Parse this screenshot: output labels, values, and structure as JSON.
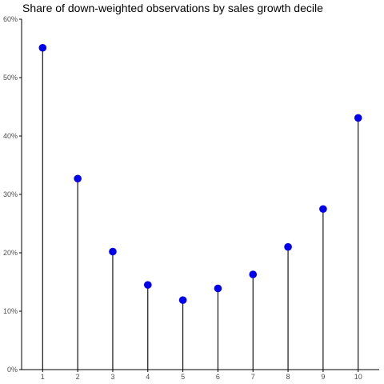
{
  "chart_data": {
    "type": "scatter",
    "style": "lollipop",
    "title": "Share of down-weighted observations by sales growth decile",
    "xlabel": "",
    "ylabel": "",
    "categories": [
      "1",
      "2",
      "3",
      "4",
      "5",
      "6",
      "7",
      "8",
      "9",
      "10"
    ],
    "values": [
      55.1,
      32.7,
      20.2,
      14.5,
      11.9,
      13.9,
      16.3,
      21.0,
      27.5,
      43.1
    ],
    "ylim": [
      0,
      60
    ],
    "yticks": [
      0,
      10,
      20,
      30,
      40,
      50,
      60
    ],
    "ytick_labels": [
      "0%",
      "10%",
      "20%",
      "30%",
      "40%",
      "50%",
      "60%"
    ],
    "grid": false,
    "legend": "none",
    "colors": {
      "point": "#0000ee",
      "stem": "#000000",
      "axis": "#000000"
    }
  }
}
